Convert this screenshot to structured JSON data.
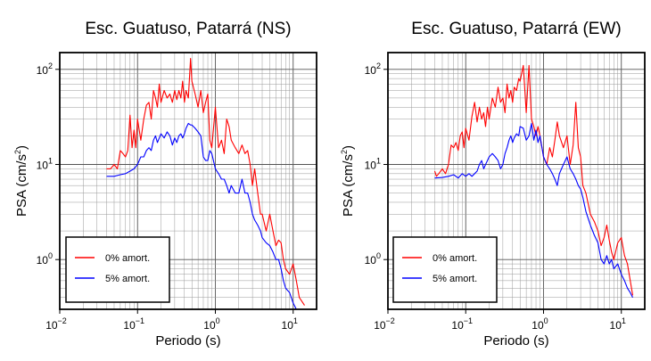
{
  "chart_data": [
    {
      "type": "line",
      "title": "Esc. Guatuso, Patarrá (NS)",
      "xlabel": "Periodo (s)",
      "ylabel_base": "PSA (cm/s",
      "ylabel_sup": "2",
      "ylabel_close": ")",
      "x_scale": "log",
      "y_scale": "log",
      "xlim": [
        0.01,
        20
      ],
      "ylim": [
        0.3,
        150
      ],
      "grid": true,
      "legend_position": "bottom-left",
      "x_ticks": [
        {
          "base": "10",
          "exp": "−2"
        },
        {
          "base": "10",
          "exp": "−1"
        },
        {
          "base": "10",
          "exp": "0"
        },
        {
          "base": "10",
          "exp": "1"
        }
      ],
      "y_ticks": [
        {
          "base": "10",
          "exp": "0"
        },
        {
          "base": "10",
          "exp": "1"
        },
        {
          "base": "10",
          "exp": "2"
        }
      ],
      "series": [
        {
          "name": "0% amort.",
          "color": "#ff0000",
          "x": [
            0.04,
            0.045,
            0.05,
            0.055,
            0.06,
            0.065,
            0.07,
            0.075,
            0.08,
            0.085,
            0.09,
            0.095,
            0.1,
            0.11,
            0.12,
            0.13,
            0.14,
            0.15,
            0.16,
            0.17,
            0.18,
            0.19,
            0.2,
            0.22,
            0.24,
            0.26,
            0.28,
            0.3,
            0.32,
            0.34,
            0.36,
            0.38,
            0.4,
            0.42,
            0.45,
            0.48,
            0.5,
            0.55,
            0.6,
            0.65,
            0.7,
            0.75,
            0.8,
            0.85,
            0.9,
            1.0,
            1.1,
            1.2,
            1.3,
            1.4,
            1.5,
            1.6,
            1.8,
            2.0,
            2.2,
            2.4,
            2.6,
            2.8,
            3.0,
            3.2,
            3.5,
            3.8,
            4.0,
            4.5,
            5.0,
            5.5,
            6.0,
            6.5,
            7.0,
            7.5,
            8.0,
            9.0,
            10.0,
            11.0,
            12.0,
            14.0
          ],
          "values": [
            9,
            9,
            10,
            9,
            14,
            13,
            12,
            14,
            33,
            15,
            23,
            15,
            30,
            18,
            30,
            42,
            45,
            30,
            60,
            50,
            40,
            70,
            45,
            60,
            50,
            55,
            45,
            60,
            48,
            60,
            50,
            75,
            45,
            60,
            50,
            130,
            75,
            55,
            40,
            60,
            35,
            45,
            55,
            18,
            15,
            40,
            15,
            18,
            13,
            30,
            25,
            18,
            15,
            13,
            16,
            13,
            14,
            10,
            6,
            9,
            5,
            3,
            3,
            2,
            3,
            2,
            1.4,
            1.6,
            1.5,
            1.0,
            0.8,
            0.7,
            0.9,
            0.6,
            0.4,
            0.33
          ]
        },
        {
          "name": "5% amort.",
          "color": "#0000ff",
          "x": [
            0.04,
            0.05,
            0.06,
            0.07,
            0.08,
            0.09,
            0.1,
            0.11,
            0.12,
            0.13,
            0.14,
            0.15,
            0.16,
            0.17,
            0.18,
            0.19,
            0.2,
            0.22,
            0.24,
            0.26,
            0.28,
            0.3,
            0.32,
            0.34,
            0.36,
            0.38,
            0.4,
            0.42,
            0.45,
            0.48,
            0.5,
            0.55,
            0.6,
            0.65,
            0.7,
            0.75,
            0.8,
            0.85,
            0.9,
            1.0,
            1.1,
            1.2,
            1.3,
            1.4,
            1.5,
            1.6,
            1.8,
            2.0,
            2.2,
            2.4,
            2.6,
            2.8,
            3.0,
            3.2,
            3.5,
            3.8,
            4.0,
            4.5,
            5.0,
            5.5,
            6.0,
            6.5,
            7.0,
            7.5,
            8.0,
            9.0,
            10.0,
            11.0,
            12.0,
            13.0
          ],
          "values": [
            7.5,
            7.5,
            7.8,
            8,
            8.5,
            9,
            10,
            12,
            12,
            14,
            15,
            14,
            18,
            20,
            17,
            19,
            21,
            19,
            22,
            20,
            16,
            19,
            17,
            20,
            21,
            19,
            21,
            24,
            27,
            26,
            26,
            24,
            22,
            20,
            12,
            11,
            11,
            14,
            13,
            9,
            8,
            7,
            7,
            6,
            5,
            6,
            5,
            5,
            7,
            5,
            5,
            4,
            3,
            2.6,
            2.3,
            2.0,
            1.7,
            1.5,
            1.4,
            1.2,
            1.0,
            1.0,
            0.8,
            0.6,
            0.5,
            0.45,
            0.35,
            0.3,
            0.28,
            0.25
          ]
        }
      ]
    },
    {
      "type": "line",
      "title": "Esc. Guatuso, Patarrá (EW)",
      "xlabel": "Periodo (s)",
      "ylabel_base": "PSA (cm/s",
      "ylabel_sup": "2",
      "ylabel_close": ")",
      "x_scale": "log",
      "y_scale": "log",
      "xlim": [
        0.01,
        20
      ],
      "ylim": [
        0.3,
        150
      ],
      "grid": true,
      "legend_position": "bottom-left",
      "x_ticks": [
        {
          "base": "10",
          "exp": "−2"
        },
        {
          "base": "10",
          "exp": "−1"
        },
        {
          "base": "10",
          "exp": "0"
        },
        {
          "base": "10",
          "exp": "1"
        }
      ],
      "y_ticks": [
        {
          "base": "10",
          "exp": "0"
        },
        {
          "base": "10",
          "exp": "1"
        },
        {
          "base": "10",
          "exp": "2"
        }
      ],
      "series": [
        {
          "name": "0% amort.",
          "color": "#ff0000",
          "x": [
            0.04,
            0.042,
            0.045,
            0.05,
            0.055,
            0.06,
            0.065,
            0.07,
            0.075,
            0.08,
            0.085,
            0.09,
            0.095,
            0.1,
            0.11,
            0.12,
            0.13,
            0.14,
            0.15,
            0.16,
            0.17,
            0.18,
            0.19,
            0.2,
            0.22,
            0.24,
            0.26,
            0.28,
            0.3,
            0.32,
            0.34,
            0.36,
            0.38,
            0.4,
            0.42,
            0.45,
            0.48,
            0.5,
            0.55,
            0.6,
            0.65,
            0.7,
            0.75,
            0.8,
            0.85,
            0.9,
            1.0,
            1.1,
            1.2,
            1.3,
            1.4,
            1.5,
            1.6,
            1.8,
            2.0,
            2.2,
            2.4,
            2.6,
            2.8,
            3.0,
            3.2,
            3.5,
            4.0,
            4.5,
            5.0,
            5.5,
            6.0,
            6.5,
            7.0,
            7.5,
            8.0,
            9.0,
            10.0,
            11.0,
            12.0,
            14.0
          ],
          "values": [
            8.5,
            7.5,
            8,
            9,
            8,
            10,
            16,
            15,
            17,
            14,
            20,
            22,
            15,
            24,
            18,
            32,
            45,
            28,
            40,
            30,
            35,
            25,
            40,
            30,
            50,
            40,
            65,
            45,
            50,
            35,
            70,
            50,
            60,
            45,
            65,
            60,
            80,
            75,
            110,
            35,
            110,
            30,
            25,
            20,
            25,
            20,
            12,
            10,
            15,
            12,
            18,
            28,
            20,
            15,
            20,
            10,
            16,
            45,
            15,
            12,
            6,
            5,
            3,
            2.5,
            2.0,
            1.4,
            1.7,
            2.3,
            1.6,
            1.2,
            1.0,
            1.5,
            1.7,
            1.1,
            0.9,
            0.42
          ]
        },
        {
          "name": "5% amort.",
          "color": "#0000ff",
          "x": [
            0.04,
            0.05,
            0.06,
            0.07,
            0.08,
            0.09,
            0.1,
            0.11,
            0.12,
            0.13,
            0.14,
            0.15,
            0.16,
            0.17,
            0.18,
            0.19,
            0.2,
            0.22,
            0.24,
            0.26,
            0.28,
            0.3,
            0.32,
            0.34,
            0.36,
            0.38,
            0.4,
            0.42,
            0.45,
            0.48,
            0.5,
            0.55,
            0.6,
            0.65,
            0.7,
            0.75,
            0.8,
            0.85,
            0.9,
            1.0,
            1.1,
            1.2,
            1.3,
            1.4,
            1.5,
            1.6,
            1.8,
            2.0,
            2.2,
            2.4,
            2.6,
            2.8,
            3.0,
            3.2,
            3.5,
            4.0,
            4.5,
            5.0,
            5.5,
            6.0,
            6.5,
            7.0,
            7.5,
            8.0,
            9.0,
            10.0,
            11.0,
            12.0,
            13.0,
            14.0
          ],
          "values": [
            7.2,
            7.3,
            7.5,
            7.8,
            7.2,
            8,
            7.5,
            8,
            7.5,
            8,
            8.5,
            10,
            11,
            9,
            10,
            11,
            12,
            13,
            12,
            11,
            9,
            10,
            13,
            15,
            18,
            20,
            17,
            19,
            21,
            20,
            25,
            24,
            18,
            20,
            27,
            18,
            23,
            17,
            20,
            12,
            10,
            9,
            8,
            7,
            6,
            8,
            10,
            12,
            9,
            8,
            7,
            6,
            5.5,
            4.5,
            3.2,
            2.3,
            1.8,
            1.5,
            1.0,
            0.9,
            1.1,
            0.9,
            1.0,
            0.8,
            0.9,
            0.7,
            0.6,
            0.5,
            0.45,
            0.4
          ]
        }
      ]
    }
  ]
}
